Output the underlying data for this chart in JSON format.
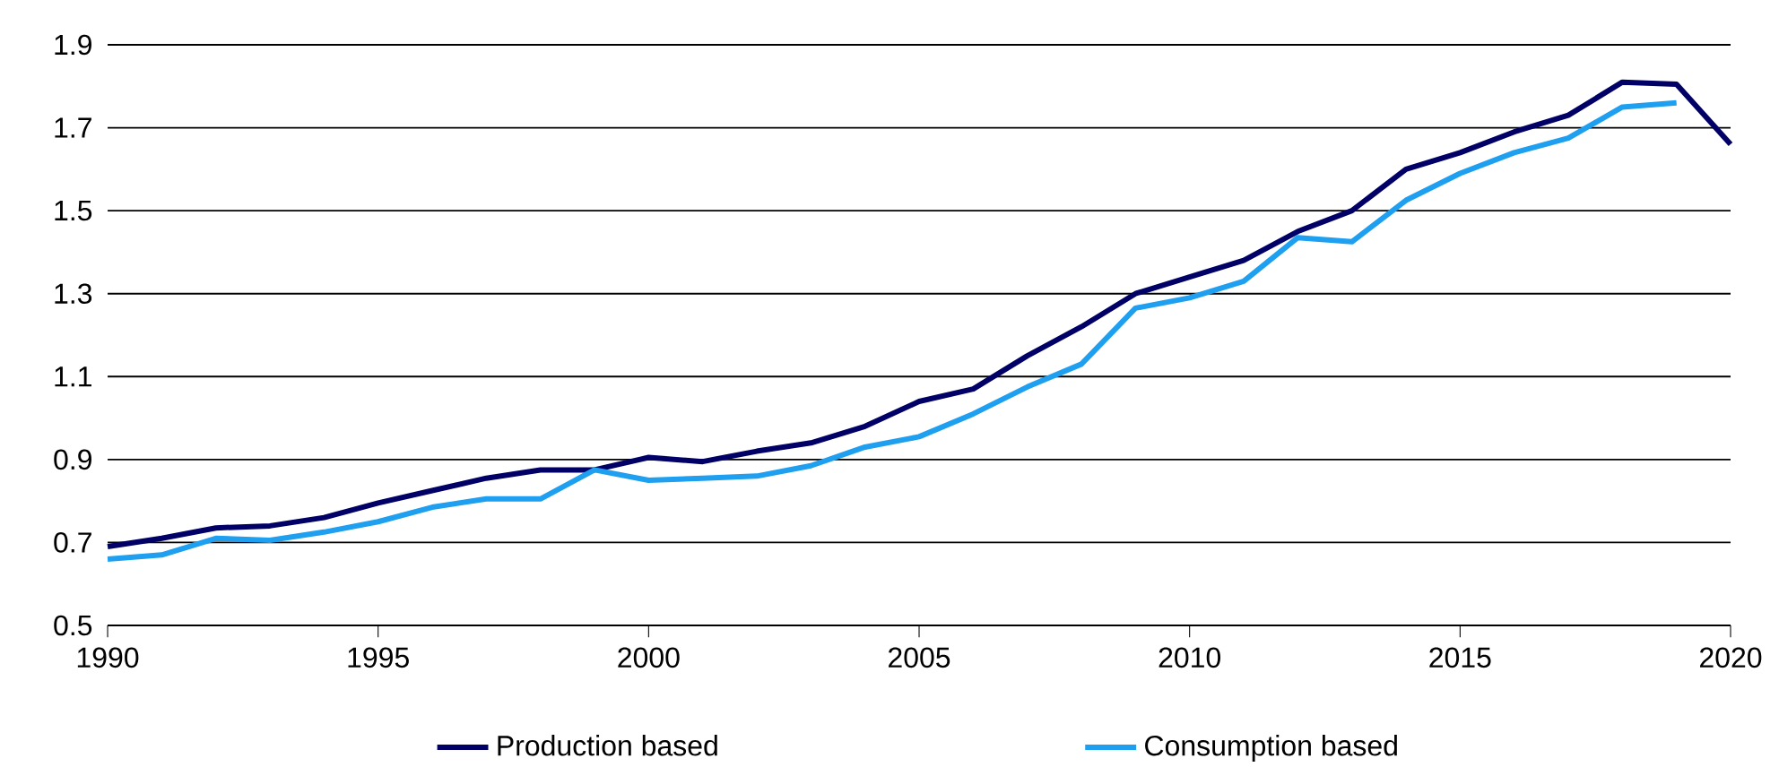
{
  "chart_data": {
    "type": "line",
    "x": [
      1990,
      1991,
      1992,
      1993,
      1994,
      1995,
      1996,
      1997,
      1998,
      1999,
      2000,
      2001,
      2002,
      2003,
      2004,
      2005,
      2006,
      2007,
      2008,
      2009,
      2010,
      2011,
      2012,
      2013,
      2014,
      2015,
      2016,
      2017,
      2018,
      2019,
      2020
    ],
    "series": [
      {
        "name": "Production based",
        "color": "#000066",
        "values": [
          0.69,
          0.71,
          0.735,
          0.74,
          0.76,
          0.795,
          0.825,
          0.855,
          0.875,
          0.875,
          0.905,
          0.895,
          0.92,
          0.94,
          0.98,
          1.04,
          1.07,
          1.15,
          1.22,
          1.3,
          1.34,
          1.38,
          1.45,
          1.5,
          1.6,
          1.64,
          1.69,
          1.73,
          1.81,
          1.805,
          1.66
        ]
      },
      {
        "name": "Consumption based",
        "color": "#1e9ff0",
        "values": [
          0.66,
          0.67,
          0.71,
          0.705,
          0.725,
          0.75,
          0.785,
          0.805,
          0.805,
          0.875,
          0.85,
          0.855,
          0.86,
          0.885,
          0.93,
          0.955,
          1.01,
          1.075,
          1.13,
          1.265,
          1.29,
          1.33,
          1.435,
          1.425,
          1.525,
          1.59,
          1.64,
          1.675,
          1.75,
          1.76,
          null
        ]
      }
    ],
    "xlim": [
      1990,
      2020
    ],
    "xticks": [
      1990,
      1995,
      2000,
      2005,
      2010,
      2015,
      2020
    ],
    "ylim": [
      0.5,
      1.9
    ],
    "yticks": [
      {
        "value": 0.5,
        "label": "0.5"
      },
      {
        "value": 0.7,
        "label": "0.7"
      },
      {
        "value": 0.9,
        "label": "0.9"
      },
      {
        "value": 1.1,
        "label": "1.1"
      },
      {
        "value": 1.3,
        "label": "1.3"
      },
      {
        "value": 1.5,
        "label": "1.5"
      },
      {
        "value": 1.7,
        "label": "1.7"
      },
      {
        "value": 1.9,
        "label": "1.9"
      }
    ],
    "grid": "y",
    "legend": "bottom",
    "marker": "none",
    "line_style": "solid"
  }
}
